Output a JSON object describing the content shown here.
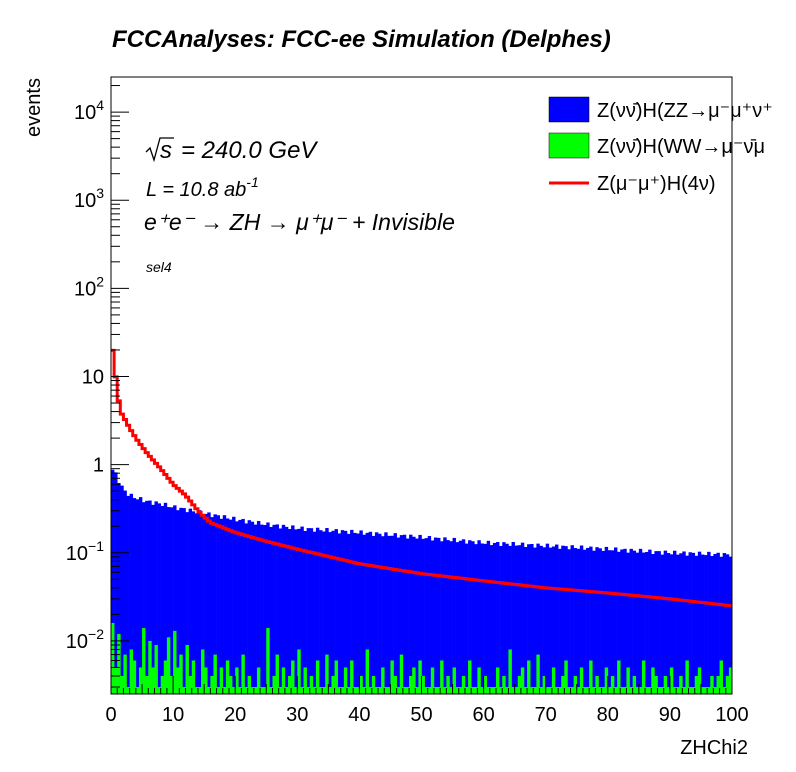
{
  "chart_data": {
    "type": "histogram",
    "title": "FCCAnalyses: FCC-ee Simulation (Delphes)",
    "xlabel": "ZHChi2",
    "ylabel": "events",
    "xlim": [
      0,
      100
    ],
    "ylim": [
      0.0025,
      25000
    ],
    "yscale": "log",
    "grid": false,
    "x_ticks": [
      "0",
      "10",
      "20",
      "30",
      "40",
      "50",
      "60",
      "70",
      "80",
      "90",
      "100"
    ],
    "y_ticks": [
      {
        "value": 10000,
        "base": "10",
        "exp": "4"
      },
      {
        "value": 1000,
        "base": "10",
        "exp": "3"
      },
      {
        "value": 100,
        "base": "10",
        "exp": "2"
      },
      {
        "value": 10,
        "base": "10",
        "exp": ""
      },
      {
        "value": 1,
        "base": "1",
        "exp": ""
      },
      {
        "value": 0.1,
        "base": "10",
        "exp": "−1"
      },
      {
        "value": 0.01,
        "base": "10",
        "exp": "−2"
      }
    ],
    "annotations": {
      "sqrt_s": "= 240.0 GeV",
      "lumi_text": "L = 10.8 ab",
      "lumi_exp": "-1",
      "process_text": "e⁺e⁻ → ZH → μ⁺μ⁻ + Invisible",
      "selection": "sel4"
    },
    "legend_position": "top-right",
    "bin_width": 0.5,
    "series": [
      {
        "name": "Z(νν̄)H(ZZ→μ⁻μ⁺ν⁺",
        "kind": "filled",
        "color": "#0000ff",
        "stacked_base": true,
        "anchors_x": [
          0,
          0.5,
          1,
          1.5,
          2,
          3,
          4,
          5,
          6,
          8,
          10,
          12,
          15,
          20,
          25,
          30,
          40,
          50,
          60,
          70,
          80,
          90,
          100
        ],
        "anchors_y": [
          0.9,
          0.85,
          0.72,
          0.6,
          0.52,
          0.45,
          0.42,
          0.4,
          0.38,
          0.36,
          0.33,
          0.31,
          0.28,
          0.24,
          0.21,
          0.19,
          0.17,
          0.15,
          0.13,
          0.12,
          0.11,
          0.1,
          0.095
        ]
      },
      {
        "name": "Z(νν̄)H(WW→μ⁻ν̄μ",
        "kind": "filled",
        "color": "#00ff00",
        "values": [
          0.016,
          0.005,
          0.012,
          0.004,
          0.007,
          0.003,
          0.008,
          0.006,
          0.003,
          0.005,
          0.014,
          0.004,
          0.01,
          0.005,
          0.009,
          0.003,
          0.004,
          0.006,
          0.011,
          0.004,
          0.013,
          0.005,
          0.007,
          0.003,
          0.009,
          0.004,
          0.006,
          0.003,
          0.003,
          0.008,
          0.005,
          0.003,
          0.004,
          0.007,
          0.003,
          0.005,
          0.003,
          0.006,
          0.004,
          0.003,
          0.005,
          0.003,
          0.007,
          0.003,
          0.004,
          0.003,
          0.003,
          0.005,
          0.003,
          0.003,
          0.014,
          0.003,
          0.004,
          0.007,
          0.003,
          0.005,
          0.003,
          0.004,
          0.006,
          0.003,
          0.008,
          0.003,
          0.005,
          0.003,
          0.004,
          0.003,
          0.006,
          0.003,
          0.003,
          0.007,
          0.003,
          0.004,
          0.006,
          0.003,
          0.003,
          0.005,
          0.003,
          0.006,
          0.003,
          0.003,
          0.004,
          0.003,
          0.008,
          0.003,
          0.004,
          0.003,
          0.003,
          0.005,
          0.003,
          0.003,
          0.006,
          0.004,
          0.003,
          0.007,
          0.003,
          0.003,
          0.004,
          0.005,
          0.003,
          0.006,
          0.004,
          0.003,
          0.003,
          0.005,
          0.003,
          0.003,
          0.006,
          0.003,
          0.004,
          0.003,
          0.005,
          0.003,
          0.003,
          0.004,
          0.003,
          0.006,
          0.003,
          0.003,
          0.005,
          0.003,
          0.004,
          0.003,
          0.003,
          0.003,
          0.005,
          0.003,
          0.004,
          0.003,
          0.008,
          0.003,
          0.003,
          0.004,
          0.005,
          0.003,
          0.006,
          0.003,
          0.003,
          0.007,
          0.003,
          0.004,
          0.003,
          0.003,
          0.005,
          0.003,
          0.003,
          0.004,
          0.006,
          0.003,
          0.003,
          0.004,
          0.003,
          0.005,
          0.003,
          0.003,
          0.006,
          0.003,
          0.004,
          0.003,
          0.003,
          0.005,
          0.003,
          0.004,
          0.003,
          0.006,
          0.003,
          0.003,
          0.005,
          0.003,
          0.004,
          0.003,
          0.003,
          0.006,
          0.003,
          0.003,
          0.005,
          0.004,
          0.003,
          0.003,
          0.004,
          0.003,
          0.005,
          0.003,
          0.003,
          0.004,
          0.003,
          0.006,
          0.003,
          0.003,
          0.004,
          0.005,
          0.003,
          0.003,
          0.003,
          0.004,
          0.003,
          0.004,
          0.006,
          0.003,
          0.004,
          0.005
        ]
      },
      {
        "name": "Z(μ⁻μ⁺)H(4ν)",
        "kind": "line",
        "color": "#ff0000",
        "anchors_x": [
          0,
          0.5,
          1,
          1.5,
          2,
          3,
          4,
          5,
          6,
          8,
          10,
          12,
          14,
          16,
          20,
          25,
          30,
          40,
          50,
          60,
          70,
          80,
          90,
          100
        ],
        "anchors_y": [
          28,
          14,
          7,
          4,
          3.5,
          2.6,
          2.0,
          1.6,
          1.3,
          0.9,
          0.6,
          0.45,
          0.3,
          0.22,
          0.17,
          0.135,
          0.11,
          0.075,
          0.058,
          0.048,
          0.04,
          0.035,
          0.03,
          0.025
        ]
      }
    ]
  }
}
